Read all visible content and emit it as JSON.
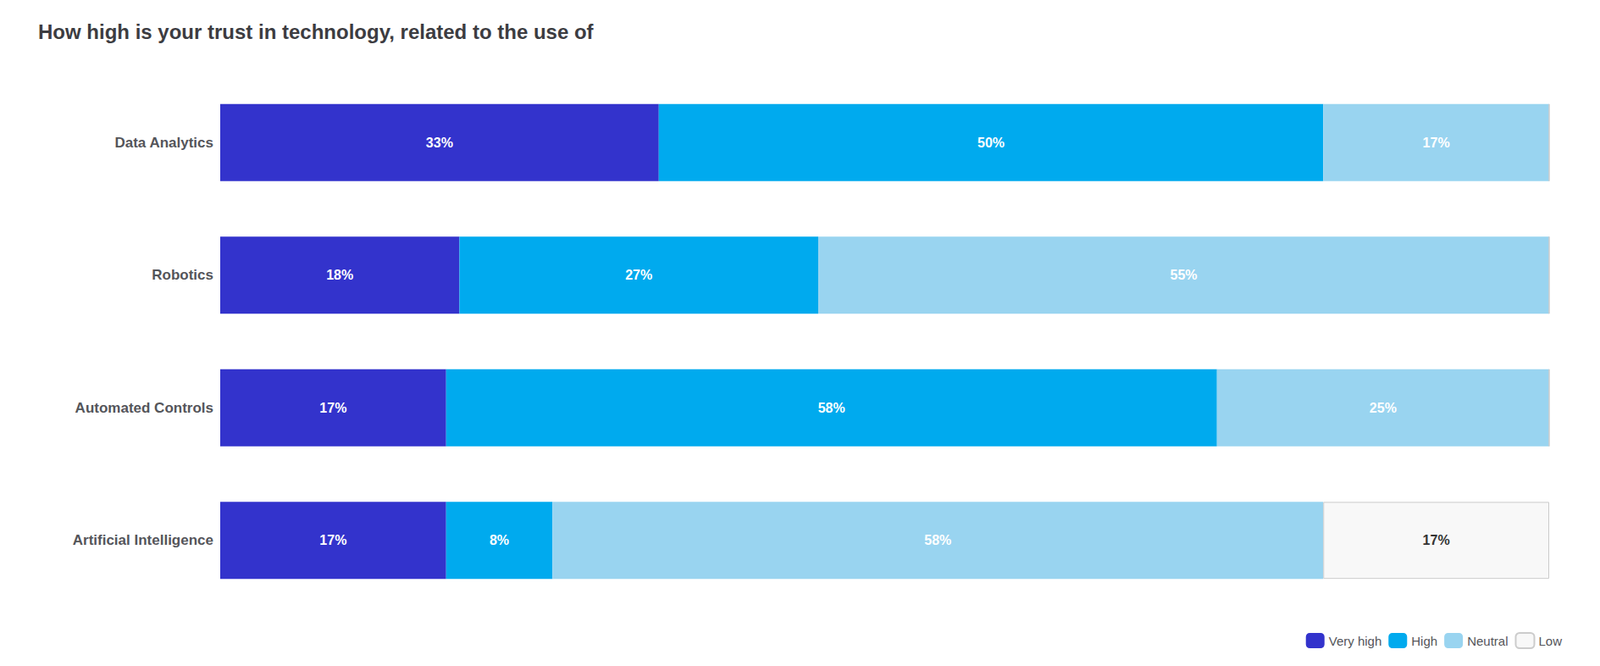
{
  "chart_data": {
    "type": "bar",
    "orientation": "horizontal",
    "stacked": true,
    "title": "How high is your trust in technology, related to the use of",
    "categories": [
      "Data Analytics",
      "Robotics",
      "Automated Controls",
      "Artificial Intelligence"
    ],
    "series": [
      {
        "name": "Very high",
        "color": "#3333cc",
        "values": [
          33,
          18,
          17,
          17
        ],
        "value_labels": [
          "33%",
          "18%",
          "17%",
          "17%"
        ]
      },
      {
        "name": "High",
        "color": "#00aaee",
        "values": [
          50,
          27,
          58,
          8
        ],
        "value_labels": [
          "50%",
          "27%",
          "58%",
          "8%"
        ]
      },
      {
        "name": "Neutral",
        "color": "#99d4f0",
        "values": [
          17,
          55,
          25,
          58
        ],
        "value_labels": [
          "17%",
          "55%",
          "25%",
          "58%"
        ]
      },
      {
        "name": "Low",
        "color": "#f8f8f8",
        "values": [
          0,
          0,
          0,
          17
        ],
        "value_labels": [
          null,
          null,
          null,
          "17%"
        ]
      }
    ],
    "xlim": [
      0,
      100
    ],
    "tick_labels": "y",
    "grid": false,
    "data_labels": true,
    "legend": "lower right"
  }
}
